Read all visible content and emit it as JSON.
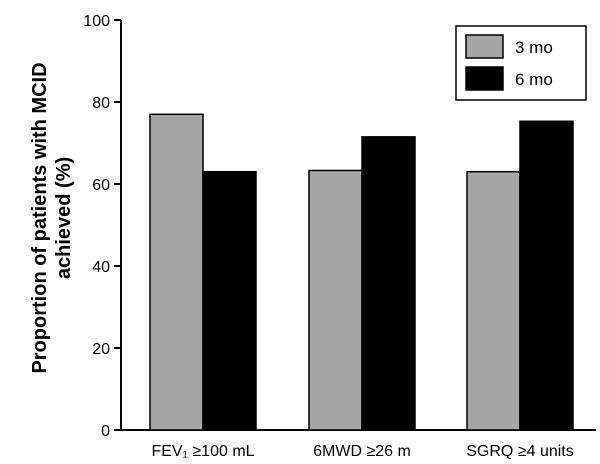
{
  "chart_data": {
    "type": "bar",
    "title": "",
    "xlabel": "",
    "ylabel_line1": "Proportion of patients with MCID",
    "ylabel_line2": "achieved (%)",
    "ylim": [
      0,
      100
    ],
    "yticks": [
      "0",
      "20",
      "40",
      "60",
      "80",
      "100"
    ],
    "categories": [
      "FEV₁ ≥100 mL",
      "6MWD ≥26 m",
      "SGRQ ≥4 units"
    ],
    "series": [
      {
        "name": "3 mo",
        "color": "#a6a6a6",
        "values": [
          77,
          63.3,
          63
        ]
      },
      {
        "name": "6 mo",
        "color": "#000000",
        "values": [
          63,
          71.5,
          75.3
        ]
      }
    ],
    "legend_position": "top-right",
    "grid": false
  }
}
